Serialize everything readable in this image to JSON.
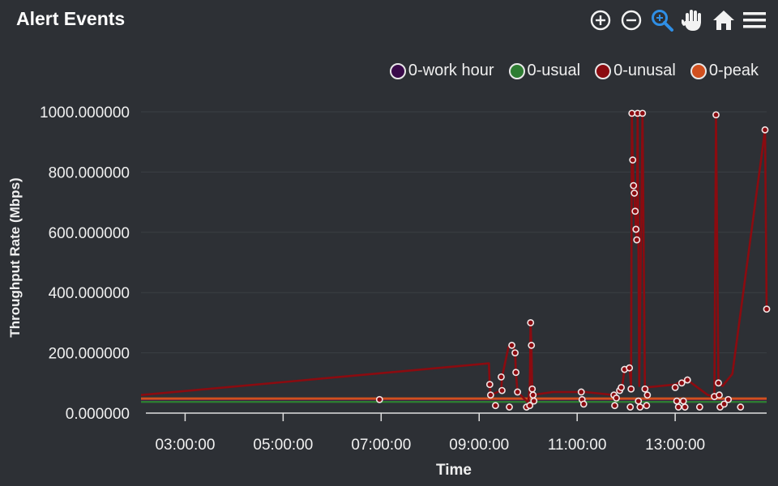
{
  "header": {
    "title": "Alert Events"
  },
  "toolbar": {
    "icons": [
      "zoom-in-icon",
      "zoom-out-icon",
      "zoom-select-icon",
      "pan-hand-icon",
      "home-icon",
      "menu-icon"
    ],
    "active_color": "#2f8fe6"
  },
  "chart_data": {
    "type": "line",
    "title": "Alert Events",
    "xlabel": "Time",
    "ylabel": "Throughput Rate (Mbps)",
    "ylim": [
      0,
      1000
    ],
    "xlim": [
      "02:06",
      "14:52"
    ],
    "y_ticks": [
      "0.000000",
      "200.000000",
      "400.000000",
      "600.000000",
      "800.000000",
      "1000.000000"
    ],
    "x_ticks": [
      "03:00:00",
      "05:00:00",
      "07:00:00",
      "09:00:00",
      "11:00:00",
      "13:00:00"
    ],
    "grid": true,
    "legend_position": "top-right",
    "series": [
      {
        "name": "0-work hour",
        "color": "#3a0a4a",
        "points": [
          [
            "02:06",
            45
          ],
          [
            "14:52",
            45
          ]
        ]
      },
      {
        "name": "0-usual",
        "color": "#2e7d32",
        "points": [
          [
            "02:06",
            38
          ],
          [
            "14:52",
            38
          ]
        ]
      },
      {
        "name": "0-unusal",
        "color": "#8b0b10",
        "points": [
          [
            "02:06",
            60
          ],
          [
            "09:12",
            165
          ],
          [
            "09:13",
            90
          ],
          [
            "09:14",
            60
          ],
          [
            "09:27",
            75
          ],
          [
            "09:28",
            120
          ],
          [
            "09:36",
            220
          ],
          [
            "09:40",
            230
          ],
          [
            "09:44",
            205
          ],
          [
            "09:45",
            135
          ],
          [
            "09:47",
            70
          ],
          [
            "10:00",
            35
          ],
          [
            "10:02",
            85
          ],
          [
            "10:03",
            300
          ],
          [
            "10:04",
            225
          ],
          [
            "10:05",
            60
          ],
          [
            "10:30",
            70
          ],
          [
            "11:10",
            70
          ],
          [
            "11:45",
            60
          ],
          [
            "11:50",
            75
          ],
          [
            "11:55",
            85
          ],
          [
            "11:58",
            145
          ],
          [
            "12:04",
            150
          ],
          [
            "12:06",
            90
          ],
          [
            "12:07",
            995
          ],
          [
            "12:08",
            840
          ],
          [
            "12:09",
            755
          ],
          [
            "12:10",
            730
          ],
          [
            "12:11",
            670
          ],
          [
            "12:12",
            610
          ],
          [
            "12:13",
            575
          ],
          [
            "12:14",
            995
          ],
          [
            "12:16",
            90
          ],
          [
            "12:20",
            995
          ],
          [
            "12:23",
            85
          ],
          [
            "13:00",
            95
          ],
          [
            "13:10",
            110
          ],
          [
            "13:15",
            110
          ],
          [
            "13:40",
            60
          ],
          [
            "13:48",
            55
          ],
          [
            "13:50",
            990
          ],
          [
            "13:53",
            100
          ],
          [
            "13:58",
            90
          ],
          [
            "14:10",
            130
          ],
          [
            "14:50",
            940
          ],
          [
            "14:52",
            345
          ]
        ]
      },
      {
        "name": "0-peak",
        "color": "#d1501f",
        "points": [
          [
            "02:06",
            48
          ],
          [
            "14:52",
            48
          ]
        ]
      }
    ],
    "markers": [
      [
        "06:58",
        45
      ],
      [
        "09:13",
        95
      ],
      [
        "09:14",
        60
      ],
      [
        "09:20",
        25
      ],
      [
        "09:27",
        120
      ],
      [
        "09:28",
        75
      ],
      [
        "09:37",
        20
      ],
      [
        "09:40",
        225
      ],
      [
        "09:44",
        200
      ],
      [
        "09:45",
        135
      ],
      [
        "09:47",
        70
      ],
      [
        "09:58",
        20
      ],
      [
        "10:02",
        25
      ],
      [
        "10:03",
        300
      ],
      [
        "10:04",
        225
      ],
      [
        "10:05",
        80
      ],
      [
        "10:06",
        60
      ],
      [
        "10:07",
        40
      ],
      [
        "11:05",
        70
      ],
      [
        "11:06",
        45
      ],
      [
        "11:08",
        30
      ],
      [
        "11:45",
        60
      ],
      [
        "11:46",
        25
      ],
      [
        "11:48",
        50
      ],
      [
        "11:52",
        75
      ],
      [
        "11:54",
        85
      ],
      [
        "11:58",
        145
      ],
      [
        "12:04",
        150
      ],
      [
        "12:05",
        20
      ],
      [
        "12:06",
        80
      ],
      [
        "12:07",
        995
      ],
      [
        "12:08",
        840
      ],
      [
        "12:09",
        755
      ],
      [
        "12:10",
        730
      ],
      [
        "12:11",
        670
      ],
      [
        "12:12",
        610
      ],
      [
        "12:13",
        575
      ],
      [
        "12:14",
        995
      ],
      [
        "12:15",
        40
      ],
      [
        "12:17",
        20
      ],
      [
        "12:20",
        995
      ],
      [
        "12:23",
        80
      ],
      [
        "12:25",
        25
      ],
      [
        "12:26",
        60
      ],
      [
        "13:00",
        85
      ],
      [
        "13:02",
        40
      ],
      [
        "13:04",
        20
      ],
      [
        "13:08",
        100
      ],
      [
        "13:10",
        40
      ],
      [
        "13:12",
        20
      ],
      [
        "13:15",
        110
      ],
      [
        "13:30",
        20
      ],
      [
        "13:48",
        55
      ],
      [
        "13:50",
        990
      ],
      [
        "13:53",
        100
      ],
      [
        "13:54",
        60
      ],
      [
        "13:55",
        20
      ],
      [
        "14:00",
        30
      ],
      [
        "14:05",
        45
      ],
      [
        "14:20",
        20
      ],
      [
        "14:50",
        940
      ],
      [
        "14:52",
        345
      ]
    ]
  }
}
